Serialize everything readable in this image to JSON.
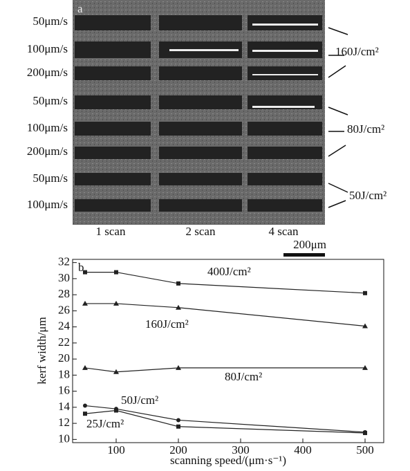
{
  "micrograph": {
    "panel": "a",
    "row_labels": [
      "50μm/s",
      "100μm/s",
      "200μm/s",
      "50μm/s",
      "100μm/s",
      "200μm/s",
      "50μm/s",
      "100μm/s"
    ],
    "fluence_labels": [
      "160J/cm²",
      "80J/cm²",
      "50J/cm²"
    ],
    "scan_labels": [
      "1 scan",
      "2 scan",
      "4 scan"
    ],
    "scale_bar": "200μm"
  },
  "chart_data": {
    "type": "line",
    "panel": "b",
    "ylabel": "kerf width/μm",
    "xlabel": "scanning speed/(μm·s⁻¹)",
    "x": [
      50,
      100,
      200,
      500
    ],
    "series": [
      {
        "name": "400J/cm²",
        "color": "#222",
        "marker": "square",
        "values": [
          30.8,
          30.8,
          29.4,
          28.2
        ]
      },
      {
        "name": "160J/cm²",
        "color": "#222",
        "marker": "triangle",
        "values": [
          26.9,
          26.9,
          26.4,
          24.1
        ]
      },
      {
        "name": "80J/cm²",
        "color": "#222",
        "marker": "triangle",
        "values": [
          18.9,
          18.4,
          18.9,
          18.9
        ]
      },
      {
        "name": "50J/cm²",
        "color": "#222",
        "marker": "circle",
        "values": [
          14.2,
          13.8,
          12.4,
          10.9
        ]
      },
      {
        "name": "25J/cm²",
        "color": "#222",
        "marker": "square",
        "values": [
          13.2,
          13.6,
          11.6,
          10.8
        ]
      }
    ],
    "xlim": [
      30,
      530
    ],
    "ylim": [
      9.6,
      32.4
    ],
    "xticks": [
      100,
      200,
      300,
      400,
      500
    ],
    "yticks": [
      10,
      12,
      14,
      16,
      18,
      20,
      22,
      24,
      26,
      28,
      30,
      32
    ]
  }
}
